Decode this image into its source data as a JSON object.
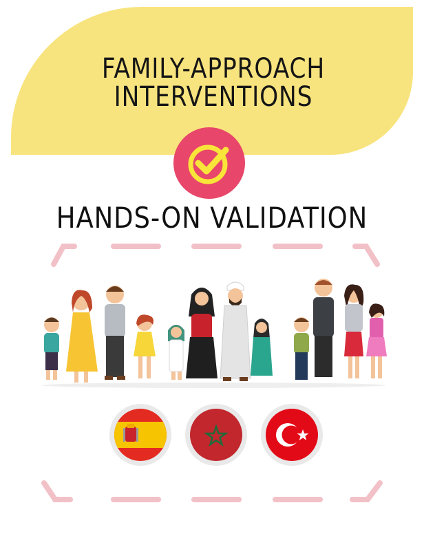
{
  "header": {
    "title_line1": "FAMILY-APPROACH",
    "title_line2": "INTERVENTIONS",
    "badge_icon": "checkmark-circle-icon"
  },
  "section": {
    "subtitle": "HANDS-ON VALIDATION"
  },
  "families": [
    {
      "name": "family-western",
      "members": 4
    },
    {
      "name": "family-arab",
      "members": 4
    },
    {
      "name": "family-european",
      "members": 4
    }
  ],
  "flags": [
    {
      "country": "spain",
      "icon": "spain-flag-icon"
    },
    {
      "country": "morocco",
      "icon": "morocco-flag-icon"
    },
    {
      "country": "turkey",
      "icon": "turkey-flag-icon"
    }
  ],
  "colors": {
    "banner": "#f8e47e",
    "badge": "#e8466a",
    "check": "#f9e43a",
    "frame_dash": "#f2c1c8"
  }
}
